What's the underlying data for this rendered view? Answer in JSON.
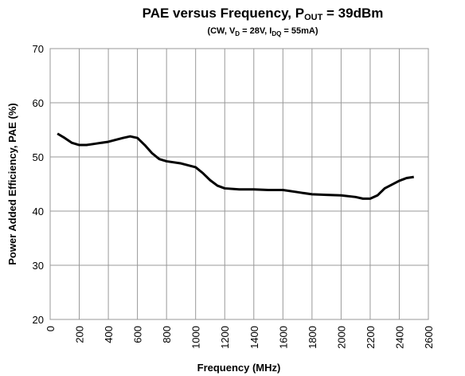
{
  "chart_data": {
    "type": "line",
    "title": [
      "PAE versus Frequency, P",
      "OUT",
      " = 39dBm"
    ],
    "subtitle": [
      "(CW, V",
      "D",
      " = 28V, I",
      "DQ",
      " = 55mA)"
    ],
    "x_label": "Frequency (MHz)",
    "y_label": "Power Added  Efficiency, PAE (%)",
    "x": [
      50,
      100,
      150,
      200,
      250,
      300,
      400,
      500,
      550,
      600,
      650,
      700,
      750,
      800,
      900,
      1000,
      1050,
      1100,
      1150,
      1200,
      1300,
      1400,
      1500,
      1600,
      1700,
      1800,
      1900,
      2000,
      2100,
      2150,
      2200,
      2250,
      2300,
      2400,
      2450,
      2500
    ],
    "series": [
      {
        "color": "#000000",
        "values": [
          54.3,
          53.5,
          52.6,
          52.2,
          52.2,
          52.4,
          52.8,
          53.5,
          53.8,
          53.5,
          52.2,
          50.7,
          49.6,
          49.2,
          48.8,
          48.1,
          47.0,
          45.7,
          44.7,
          44.2,
          44.0,
          44.0,
          43.9,
          43.9,
          43.5,
          43.1,
          43.0,
          42.9,
          42.6,
          42.3,
          42.3,
          42.9,
          44.2,
          45.6,
          46.1,
          46.3
        ]
      }
    ],
    "xlim": [
      0,
      2600
    ],
    "xticks": [
      0,
      200,
      400,
      600,
      800,
      1000,
      1200,
      1400,
      1600,
      1800,
      2000,
      2200,
      2400,
      2600
    ],
    "ylim": [
      20,
      70
    ],
    "yticks": [
      20,
      30,
      40,
      50,
      60,
      70
    ],
    "grid": true
  }
}
